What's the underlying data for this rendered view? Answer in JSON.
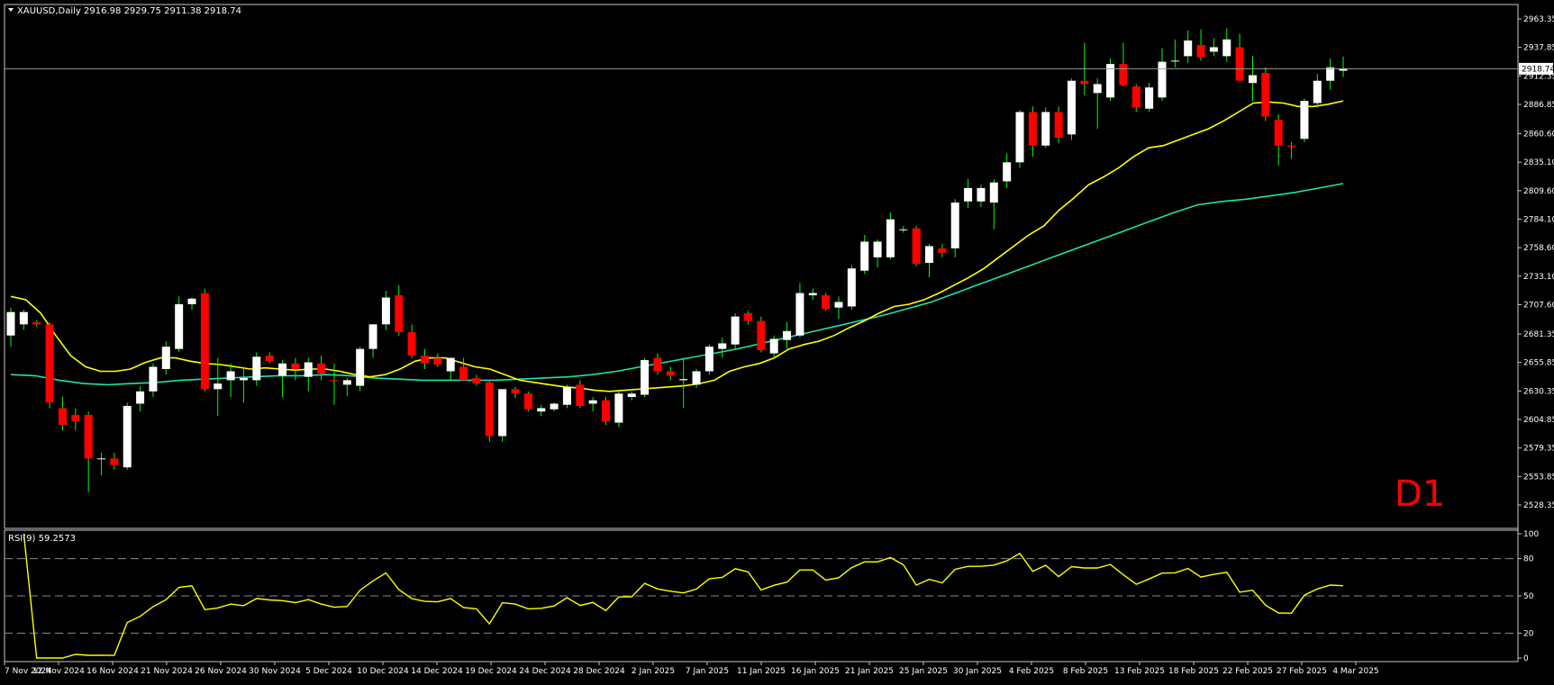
{
  "header": {
    "symbol_line": "XAUUSD,Daily  2916.98 2929.75 2911.38 2918.74"
  },
  "watermark": "D1",
  "current_price_label": "2918.74",
  "rsi_label": "RSI(9) 59.2573",
  "price_axis_labels": [
    "2963.35",
    "2937.85",
    "2912.35",
    "2886.85",
    "2860.60",
    "2835.10",
    "2809.60",
    "2784.10",
    "2758.60",
    "2733.10",
    "2707.60",
    "2681.35",
    "2655.85",
    "2630.35",
    "2604.85",
    "2579.35",
    "2553.85",
    "2528.35"
  ],
  "rsi_axis_labels": [
    "100",
    "80",
    "50",
    "20",
    "0"
  ],
  "date_labels": [
    "7 Nov 2024",
    "12 Nov 2024",
    "16 Nov 2024",
    "21 Nov 2024",
    "26 Nov 2024",
    "30 Nov 2024",
    "5 Dec 2024",
    "10 Dec 2024",
    "14 Dec 2024",
    "19 Dec 2024",
    "24 Dec 2024",
    "28 Dec 2024",
    "2 Jan 2025",
    "7 Jan 2025",
    "11 Jan 2025",
    "16 Jan 2025",
    "21 Jan 2025",
    "25 Jan 2025",
    "30 Jan 2025",
    "4 Feb 2025",
    "8 Feb 2025",
    "13 Feb 2025",
    "18 Feb 2025",
    "22 Feb 2025",
    "27 Feb 2025",
    "4 Mar 2025"
  ],
  "colors": {
    "background": "#000000",
    "bull_candle": "#ffffff",
    "bear_candle": "#ff0000",
    "wick_doji": "#00ff00",
    "ma_fast": "#ffff00",
    "ma_slow": "#20e0b0",
    "rsi_line": "#ffff00",
    "axis_text": "#ffffff",
    "watermark": "#ff0000"
  },
  "chart_data": {
    "type": "candlestick",
    "symbol": "XAUUSD",
    "timeframe": "Daily",
    "last_ohlc": {
      "open": 2916.98,
      "high": 2929.75,
      "low": 2911.38,
      "close": 2918.74
    },
    "y_range": [
      2528.35,
      2975
    ],
    "candles": [
      {
        "o": 2680,
        "h": 2705,
        "l": 2670,
        "c": 2701
      },
      {
        "o": 2690,
        "h": 2703,
        "l": 2685,
        "c": 2701
      },
      {
        "o": 2692,
        "h": 2694,
        "l": 2688,
        "c": 2690
      },
      {
        "o": 2690,
        "h": 2692,
        "l": 2615,
        "c": 2620
      },
      {
        "o": 2615,
        "h": 2625,
        "l": 2595,
        "c": 2600
      },
      {
        "o": 2609,
        "h": 2615,
        "l": 2595,
        "c": 2603
      },
      {
        "o": 2609,
        "h": 2612,
        "l": 2540,
        "c": 2570
      },
      {
        "o": 2570,
        "h": 2575,
        "l": 2555,
        "c": 2570
      },
      {
        "o": 2570,
        "h": 2575,
        "l": 2560,
        "c": 2564
      },
      {
        "o": 2562,
        "h": 2620,
        "l": 2560,
        "c": 2617
      },
      {
        "o": 2619,
        "h": 2635,
        "l": 2612,
        "c": 2630
      },
      {
        "o": 2630,
        "h": 2655,
        "l": 2625,
        "c": 2652
      },
      {
        "o": 2650,
        "h": 2675,
        "l": 2645,
        "c": 2670
      },
      {
        "o": 2668,
        "h": 2715,
        "l": 2665,
        "c": 2708
      },
      {
        "o": 2708,
        "h": 2714,
        "l": 2703,
        "c": 2713
      },
      {
        "o": 2718,
        "h": 2722,
        "l": 2630,
        "c": 2632
      },
      {
        "o": 2632,
        "h": 2660,
        "l": 2608,
        "c": 2637
      },
      {
        "o": 2640,
        "h": 2655,
        "l": 2625,
        "c": 2648
      },
      {
        "o": 2640,
        "h": 2650,
        "l": 2620,
        "c": 2642
      },
      {
        "o": 2640,
        "h": 2665,
        "l": 2635,
        "c": 2661
      },
      {
        "o": 2662,
        "h": 2665,
        "l": 2655,
        "c": 2657
      },
      {
        "o": 2644,
        "h": 2658,
        "l": 2625,
        "c": 2655
      },
      {
        "o": 2655,
        "h": 2660,
        "l": 2640,
        "c": 2650
      },
      {
        "o": 2643,
        "h": 2660,
        "l": 2630,
        "c": 2656
      },
      {
        "o": 2655,
        "h": 2662,
        "l": 2640,
        "c": 2646
      },
      {
        "o": 2640,
        "h": 2655,
        "l": 2618,
        "c": 2639
      },
      {
        "o": 2636,
        "h": 2642,
        "l": 2626,
        "c": 2640
      },
      {
        "o": 2635,
        "h": 2670,
        "l": 2630,
        "c": 2668
      },
      {
        "o": 2668,
        "h": 2690,
        "l": 2660,
        "c": 2690
      },
      {
        "o": 2690,
        "h": 2720,
        "l": 2685,
        "c": 2714
      },
      {
        "o": 2716,
        "h": 2725,
        "l": 2680,
        "c": 2683
      },
      {
        "o": 2683,
        "h": 2690,
        "l": 2660,
        "c": 2662
      },
      {
        "o": 2662,
        "h": 2668,
        "l": 2650,
        "c": 2655
      },
      {
        "o": 2660,
        "h": 2664,
        "l": 2652,
        "c": 2654
      },
      {
        "o": 2648,
        "h": 2660,
        "l": 2640,
        "c": 2660
      },
      {
        "o": 2652,
        "h": 2660,
        "l": 2640,
        "c": 2640
      },
      {
        "o": 2642,
        "h": 2645,
        "l": 2635,
        "c": 2637
      },
      {
        "o": 2638,
        "h": 2640,
        "l": 2585,
        "c": 2590
      },
      {
        "o": 2590,
        "h": 2632,
        "l": 2585,
        "c": 2632
      },
      {
        "o": 2632,
        "h": 2634,
        "l": 2624,
        "c": 2628
      },
      {
        "o": 2628,
        "h": 2630,
        "l": 2612,
        "c": 2614
      },
      {
        "o": 2612,
        "h": 2618,
        "l": 2608,
        "c": 2615
      },
      {
        "o": 2614,
        "h": 2620,
        "l": 2612,
        "c": 2619
      },
      {
        "o": 2618,
        "h": 2636,
        "l": 2615,
        "c": 2634
      },
      {
        "o": 2636,
        "h": 2640,
        "l": 2615,
        "c": 2617
      },
      {
        "o": 2619,
        "h": 2625,
        "l": 2612,
        "c": 2622
      },
      {
        "o": 2622,
        "h": 2625,
        "l": 2600,
        "c": 2603
      },
      {
        "o": 2602,
        "h": 2630,
        "l": 2598,
        "c": 2628
      },
      {
        "o": 2625,
        "h": 2630,
        "l": 2622,
        "c": 2628
      },
      {
        "o": 2627,
        "h": 2660,
        "l": 2625,
        "c": 2658
      },
      {
        "o": 2660,
        "h": 2664,
        "l": 2645,
        "c": 2648
      },
      {
        "o": 2648,
        "h": 2652,
        "l": 2640,
        "c": 2644
      },
      {
        "o": 2640,
        "h": 2660,
        "l": 2615,
        "c": 2641
      },
      {
        "o": 2636,
        "h": 2650,
        "l": 2633,
        "c": 2648
      },
      {
        "o": 2648,
        "h": 2672,
        "l": 2645,
        "c": 2670
      },
      {
        "o": 2668,
        "h": 2678,
        "l": 2660,
        "c": 2673
      },
      {
        "o": 2672,
        "h": 2700,
        "l": 2668,
        "c": 2697
      },
      {
        "o": 2700,
        "h": 2702,
        "l": 2690,
        "c": 2693
      },
      {
        "o": 2693,
        "h": 2697,
        "l": 2665,
        "c": 2667
      },
      {
        "o": 2664,
        "h": 2680,
        "l": 2660,
        "c": 2677
      },
      {
        "o": 2676,
        "h": 2692,
        "l": 2668,
        "c": 2684
      },
      {
        "o": 2680,
        "h": 2727,
        "l": 2678,
        "c": 2718
      },
      {
        "o": 2716,
        "h": 2722,
        "l": 2712,
        "c": 2718
      },
      {
        "o": 2716,
        "h": 2718,
        "l": 2702,
        "c": 2704
      },
      {
        "o": 2705,
        "h": 2715,
        "l": 2695,
        "c": 2710
      },
      {
        "o": 2706,
        "h": 2743,
        "l": 2703,
        "c": 2740
      },
      {
        "o": 2738,
        "h": 2770,
        "l": 2735,
        "c": 2764
      },
      {
        "o": 2750,
        "h": 2766,
        "l": 2741,
        "c": 2764
      },
      {
        "o": 2750,
        "h": 2790,
        "l": 2748,
        "c": 2784
      },
      {
        "o": 2775,
        "h": 2778,
        "l": 2772,
        "c": 2775
      },
      {
        "o": 2776,
        "h": 2778,
        "l": 2742,
        "c": 2744
      },
      {
        "o": 2745,
        "h": 2762,
        "l": 2732,
        "c": 2760
      },
      {
        "o": 2758,
        "h": 2762,
        "l": 2750,
        "c": 2754
      },
      {
        "o": 2758,
        "h": 2802,
        "l": 2750,
        "c": 2799
      },
      {
        "o": 2800,
        "h": 2820,
        "l": 2794,
        "c": 2812
      },
      {
        "o": 2800,
        "h": 2815,
        "l": 2795,
        "c": 2812
      },
      {
        "o": 2799,
        "h": 2820,
        "l": 2775,
        "c": 2817
      },
      {
        "o": 2818,
        "h": 2843,
        "l": 2812,
        "c": 2835
      },
      {
        "o": 2835,
        "h": 2882,
        "l": 2830,
        "c": 2880
      },
      {
        "o": 2880,
        "h": 2885,
        "l": 2840,
        "c": 2850
      },
      {
        "o": 2850,
        "h": 2884,
        "l": 2848,
        "c": 2880
      },
      {
        "o": 2880,
        "h": 2885,
        "l": 2852,
        "c": 2857
      },
      {
        "o": 2860,
        "h": 2910,
        "l": 2855,
        "c": 2908
      },
      {
        "o": 2908,
        "h": 2942,
        "l": 2895,
        "c": 2905
      },
      {
        "o": 2897,
        "h": 2910,
        "l": 2865,
        "c": 2905
      },
      {
        "o": 2893,
        "h": 2928,
        "l": 2890,
        "c": 2923
      },
      {
        "o": 2923,
        "h": 2942,
        "l": 2903,
        "c": 2904
      },
      {
        "o": 2903,
        "h": 2905,
        "l": 2880,
        "c": 2884
      },
      {
        "o": 2883,
        "h": 2906,
        "l": 2880,
        "c": 2902
      },
      {
        "o": 2893,
        "h": 2937,
        "l": 2890,
        "c": 2925
      },
      {
        "o": 2926,
        "h": 2945,
        "l": 2920,
        "c": 2926
      },
      {
        "o": 2930,
        "h": 2953,
        "l": 2924,
        "c": 2944
      },
      {
        "o": 2940,
        "h": 2954,
        "l": 2926,
        "c": 2929
      },
      {
        "o": 2934,
        "h": 2946,
        "l": 2930,
        "c": 2938
      },
      {
        "o": 2930,
        "h": 2955,
        "l": 2925,
        "c": 2945
      },
      {
        "o": 2938,
        "h": 2950,
        "l": 2908,
        "c": 2908
      },
      {
        "o": 2906,
        "h": 2930,
        "l": 2890,
        "c": 2913
      },
      {
        "o": 2915,
        "h": 2920,
        "l": 2872,
        "c": 2876
      },
      {
        "o": 2873,
        "h": 2878,
        "l": 2832,
        "c": 2850
      },
      {
        "o": 2850,
        "h": 2853,
        "l": 2838,
        "c": 2849
      },
      {
        "o": 2856,
        "h": 2892,
        "l": 2853,
        "c": 2890
      },
      {
        "o": 2888,
        "h": 2914,
        "l": 2884,
        "c": 2908
      },
      {
        "o": 2908,
        "h": 2928,
        "l": 2900,
        "c": 2920
      },
      {
        "o": 2916.98,
        "h": 2929.75,
        "l": 2911.38,
        "c": 2918.74
      }
    ],
    "ma_fast": [
      2715,
      2712,
      2700,
      2680,
      2662,
      2652,
      2648,
      2648,
      2650,
      2656,
      2660,
      2660,
      2657,
      2655,
      2654,
      2652,
      2650,
      2651,
      2650,
      2649,
      2650,
      2650,
      2648,
      2645,
      2643,
      2645,
      2650,
      2657,
      2660,
      2660,
      2656,
      2652,
      2650,
      2645,
      2640,
      2638,
      2636,
      2634,
      2633,
      2631,
      2630,
      2631,
      2632,
      2633,
      2634,
      2635,
      2637,
      2640,
      2648,
      2652,
      2655,
      2660,
      2668,
      2672,
      2675,
      2680,
      2687,
      2693,
      2700,
      2706,
      2708,
      2712,
      2718,
      2725,
      2732,
      2740,
      2750,
      2760,
      2770,
      2778,
      2792,
      2803,
      2815,
      2822,
      2830,
      2840,
      2848,
      2850,
      2855,
      2860,
      2865,
      2872,
      2880,
      2888,
      2889,
      2888,
      2885,
      2885,
      2887,
      2890
    ],
    "ma_slow": [
      2645,
      2644,
      2640,
      2637,
      2636,
      2637,
      2638,
      2640,
      2641,
      2642,
      2643,
      2644,
      2644,
      2645,
      2644,
      2642,
      2641,
      2640,
      2640,
      2640,
      2640,
      2641,
      2642,
      2643,
      2645,
      2648,
      2652,
      2656,
      2660,
      2664,
      2668,
      2673,
      2678,
      2683,
      2688,
      2693,
      2698,
      2704,
      2710,
      2718,
      2726,
      2734,
      2742,
      2750,
      2758,
      2766,
      2774,
      2782,
      2790,
      2797,
      2800,
      2802,
      2805,
      2808,
      2812,
      2816
    ],
    "rsi": {
      "period": 9,
      "last": 59.2573,
      "levels": [
        80,
        50,
        20
      ]
    }
  }
}
